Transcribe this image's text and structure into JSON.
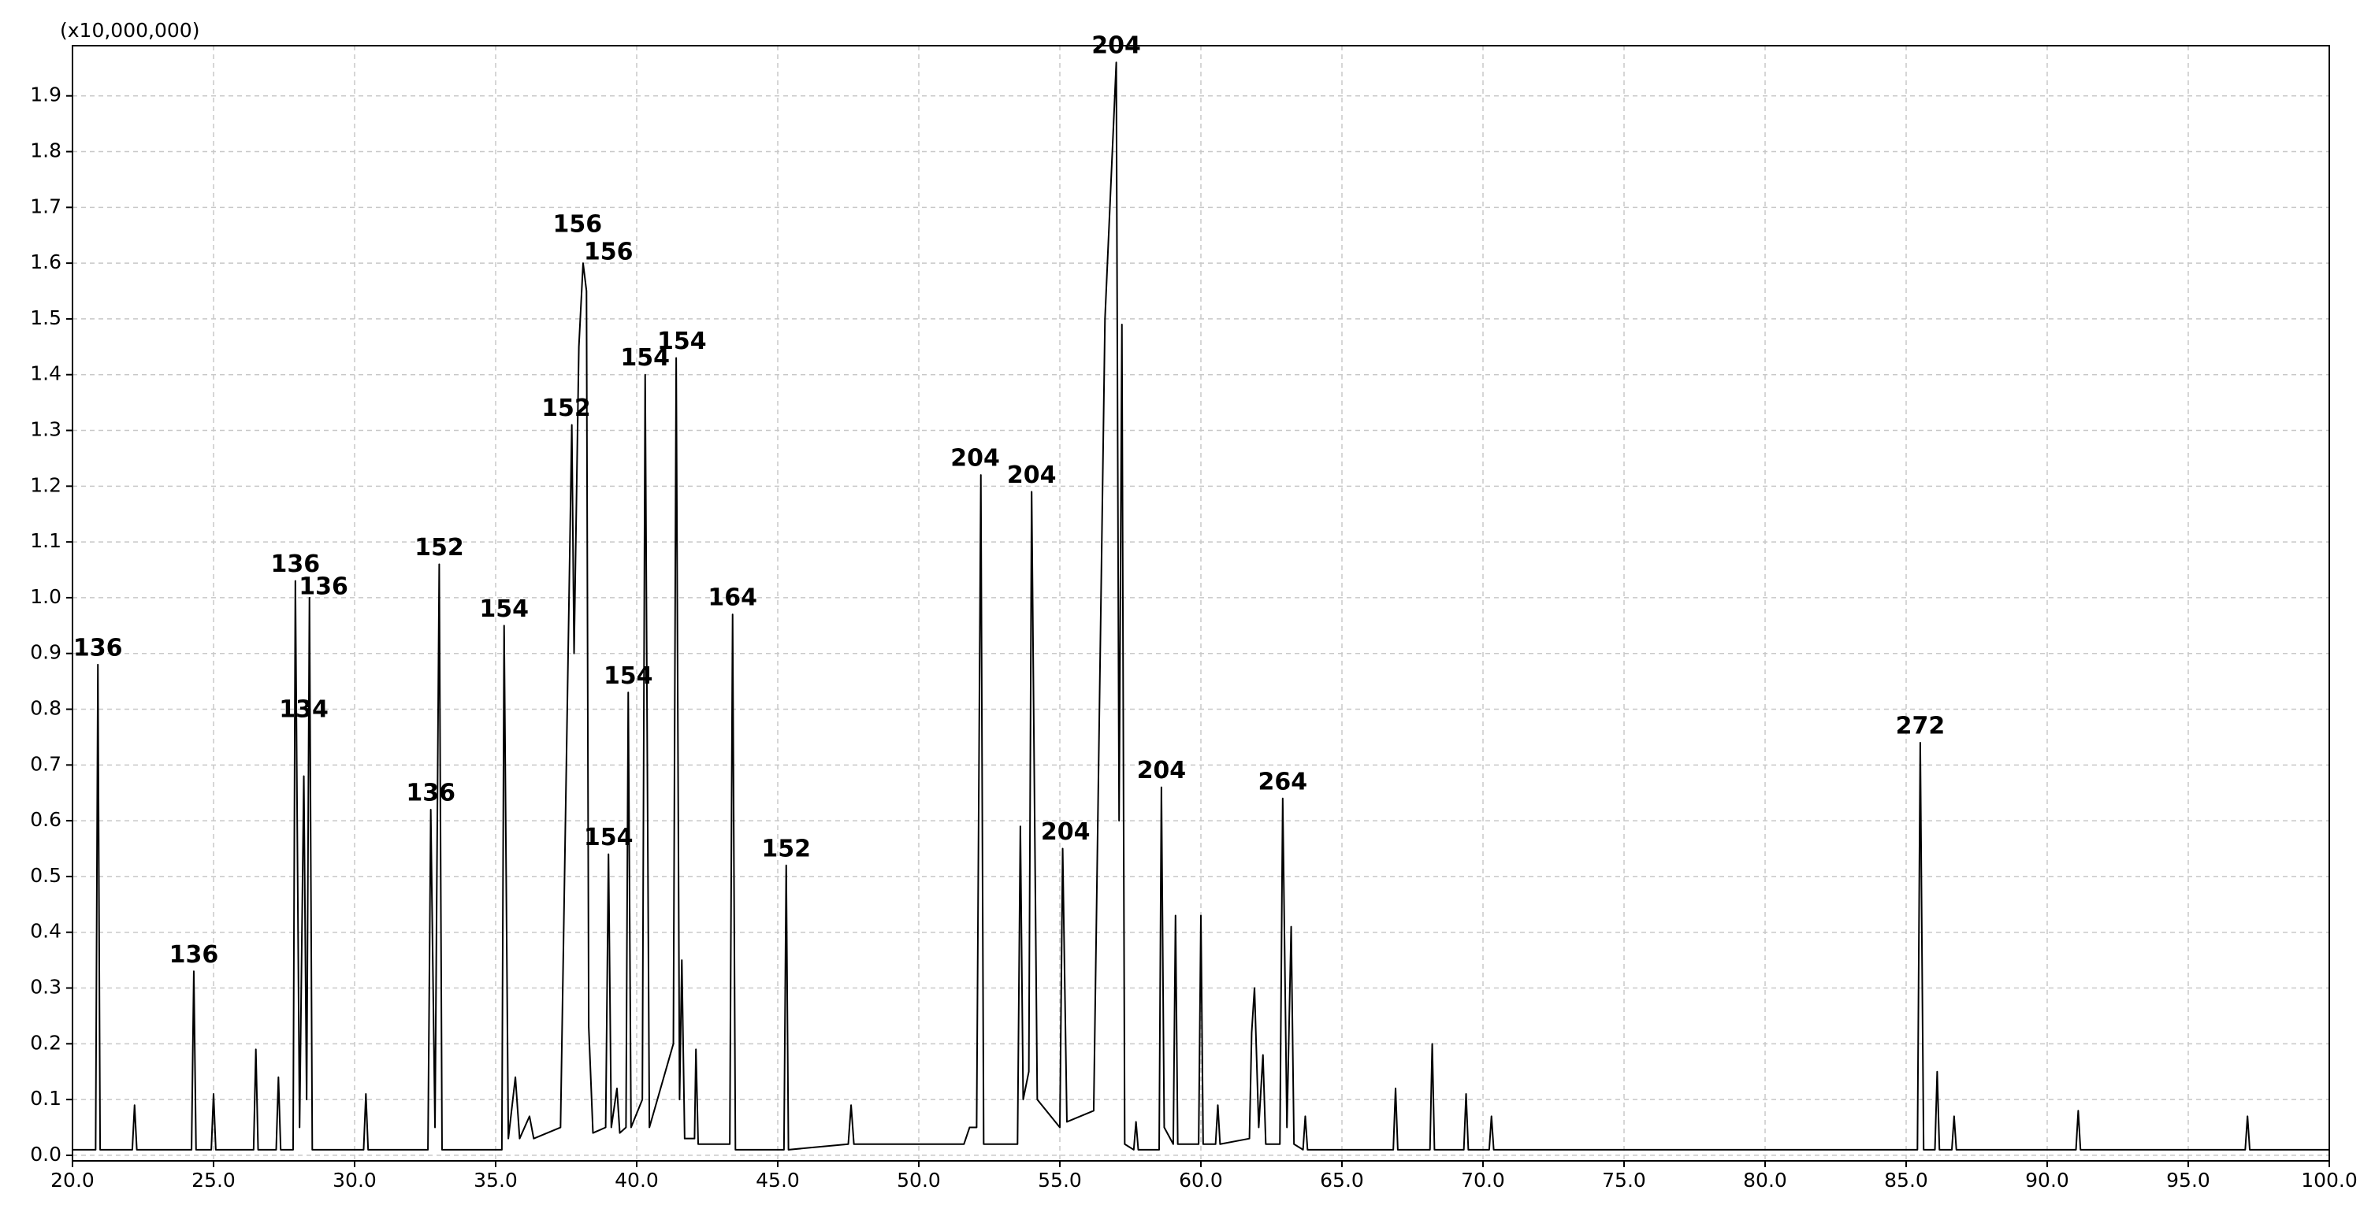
{
  "chart_data": {
    "type": "line",
    "multiplier_label": "(x10,000,000)",
    "color": "#000000",
    "grid": true,
    "xlim": [
      20,
      100
    ],
    "ylim": [
      -0.01,
      1.99
    ],
    "xticks": [
      {
        "value": 20,
        "label": "20.0"
      },
      {
        "value": 25,
        "label": "25.0"
      },
      {
        "value": 30,
        "label": "30.0"
      },
      {
        "value": 35,
        "label": "35.0"
      },
      {
        "value": 40,
        "label": "40.0"
      },
      {
        "value": 45,
        "label": "45.0"
      },
      {
        "value": 50,
        "label": "50.0"
      },
      {
        "value": 55,
        "label": "55.0"
      },
      {
        "value": 60,
        "label": "60.0"
      },
      {
        "value": 65,
        "label": "65.0"
      },
      {
        "value": 70,
        "label": "70.0"
      },
      {
        "value": 75,
        "label": "75.0"
      },
      {
        "value": 80,
        "label": "80.0"
      },
      {
        "value": 85,
        "label": "85.0"
      },
      {
        "value": 90,
        "label": "90.0"
      },
      {
        "value": 95,
        "label": "95.0"
      },
      {
        "value": 100,
        "label": "100.0"
      }
    ],
    "yticks": [
      {
        "value": 0,
        "label": "0.0"
      },
      0.1,
      0.2,
      0.3,
      0.4,
      0.5,
      0.6,
      0.7,
      0.8,
      0.9,
      {
        "value": 1,
        "label": "1.0"
      },
      1.1,
      1.2,
      1.3,
      1.4,
      1.5,
      1.6,
      1.7,
      1.8,
      1.9
    ],
    "x": [
      20.0,
      20.82,
      20.9,
      20.98,
      22.12,
      22.2,
      22.28,
      24.22,
      24.3,
      24.38,
      24.92,
      25.0,
      25.08,
      26.42,
      26.5,
      26.58,
      27.22,
      27.3,
      27.38,
      27.82,
      27.9,
      28.05,
      28.2,
      28.3,
      28.4,
      28.5,
      30.32,
      30.4,
      30.48,
      32.6,
      32.7,
      32.85,
      33.0,
      33.1,
      35.22,
      35.3,
      35.45,
      35.7,
      35.85,
      36.2,
      36.35,
      37.3,
      37.7,
      37.78,
      37.95,
      38.1,
      38.22,
      38.3,
      38.45,
      38.9,
      39.0,
      39.1,
      39.3,
      39.4,
      39.62,
      39.7,
      39.8,
      40.2,
      40.3,
      40.45,
      41.3,
      41.4,
      41.52,
      41.6,
      41.7,
      42.05,
      42.1,
      42.18,
      43.3,
      43.4,
      43.5,
      45.22,
      45.3,
      45.38,
      47.5,
      47.6,
      47.7,
      51.6,
      51.8,
      52.05,
      52.2,
      52.3,
      53.5,
      53.6,
      53.7,
      53.9,
      54.0,
      54.2,
      55.0,
      55.1,
      55.25,
      56.2,
      56.6,
      57.0,
      57.1,
      57.2,
      57.3,
      57.62,
      57.7,
      57.78,
      58.52,
      58.6,
      58.7,
      59.02,
      59.1,
      59.18,
      59.92,
      60.0,
      60.08,
      60.52,
      60.6,
      60.68,
      61.72,
      61.8,
      61.9,
      62.05,
      62.2,
      62.3,
      62.8,
      62.9,
      63.05,
      63.2,
      63.3,
      63.62,
      63.7,
      63.78,
      66.82,
      66.9,
      66.98,
      68.12,
      68.2,
      68.28,
      69.32,
      69.4,
      69.48,
      70.22,
      70.3,
      70.38,
      85.4,
      85.5,
      85.62,
      86.02,
      86.1,
      86.18,
      86.62,
      86.7,
      86.78,
      91.02,
      91.1,
      91.18,
      97.02,
      97.1,
      97.18,
      100.0
    ],
    "values": [
      0.01,
      0.01,
      0.88,
      0.01,
      0.01,
      0.09,
      0.01,
      0.01,
      0.33,
      0.01,
      0.01,
      0.11,
      0.01,
      0.01,
      0.19,
      0.01,
      0.01,
      0.14,
      0.01,
      0.01,
      1.03,
      0.05,
      0.68,
      0.1,
      1.0,
      0.01,
      0.01,
      0.11,
      0.01,
      0.01,
      0.62,
      0.05,
      1.06,
      0.01,
      0.01,
      0.95,
      0.03,
      0.14,
      0.03,
      0.07,
      0.03,
      0.05,
      1.31,
      0.9,
      1.45,
      1.6,
      1.55,
      0.23,
      0.04,
      0.05,
      0.54,
      0.05,
      0.12,
      0.04,
      0.05,
      0.83,
      0.05,
      0.1,
      1.4,
      0.05,
      0.2,
      1.43,
      0.1,
      0.35,
      0.03,
      0.03,
      0.19,
      0.02,
      0.02,
      0.97,
      0.01,
      0.01,
      0.52,
      0.01,
      0.02,
      0.09,
      0.02,
      0.02,
      0.05,
      0.05,
      1.22,
      0.02,
      0.02,
      0.59,
      0.1,
      0.15,
      1.19,
      0.1,
      0.05,
      0.55,
      0.06,
      0.08,
      1.5,
      1.96,
      0.6,
      1.49,
      0.02,
      0.01,
      0.06,
      0.01,
      0.01,
      0.66,
      0.05,
      0.02,
      0.43,
      0.02,
      0.02,
      0.43,
      0.02,
      0.02,
      0.09,
      0.02,
      0.03,
      0.22,
      0.3,
      0.05,
      0.18,
      0.02,
      0.02,
      0.64,
      0.05,
      0.41,
      0.02,
      0.01,
      0.07,
      0.01,
      0.01,
      0.12,
      0.01,
      0.01,
      0.2,
      0.01,
      0.01,
      0.11,
      0.01,
      0.01,
      0.07,
      0.01,
      0.01,
      0.74,
      0.01,
      0.01,
      0.15,
      0.01,
      0.01,
      0.07,
      0.01,
      0.01,
      0.08,
      0.01,
      0.01,
      0.07,
      0.01,
      0.01
    ],
    "annotations": [
      {
        "text": "136",
        "x": 20.9,
        "y": 0.88
      },
      {
        "text": "136",
        "x": 24.3,
        "y": 0.33
      },
      {
        "text": "136",
        "x": 27.9,
        "y": 1.03
      },
      {
        "text": "134",
        "x": 28.2,
        "y": 0.77
      },
      {
        "text": "136",
        "x": 28.9,
        "y": 0.99
      },
      {
        "text": "136",
        "x": 32.7,
        "y": 0.62
      },
      {
        "text": "152",
        "x": 33.0,
        "y": 1.06
      },
      {
        "text": "154",
        "x": 35.3,
        "y": 0.95
      },
      {
        "text": "152",
        "x": 37.5,
        "y": 1.31
      },
      {
        "text": "156",
        "x": 37.9,
        "y": 1.64
      },
      {
        "text": "156",
        "x": 39.0,
        "y": 1.59
      },
      {
        "text": "154",
        "x": 39.0,
        "y": 0.54
      },
      {
        "text": "154",
        "x": 39.7,
        "y": 0.83
      },
      {
        "text": "154",
        "x": 40.3,
        "y": 1.4
      },
      {
        "text": "154",
        "x": 41.6,
        "y": 1.43
      },
      {
        "text": "164",
        "x": 43.4,
        "y": 0.97
      },
      {
        "text": "152",
        "x": 45.3,
        "y": 0.52
      },
      {
        "text": "204",
        "x": 52.0,
        "y": 1.22
      },
      {
        "text": "204",
        "x": 54.0,
        "y": 1.19
      },
      {
        "text": "204",
        "x": 55.2,
        "y": 0.55
      },
      {
        "text": "204",
        "x": 57.0,
        "y": 1.96
      },
      {
        "text": "204",
        "x": 58.6,
        "y": 0.66
      },
      {
        "text": "264",
        "x": 62.9,
        "y": 0.64
      },
      {
        "text": "272",
        "x": 85.5,
        "y": 0.74
      }
    ]
  }
}
